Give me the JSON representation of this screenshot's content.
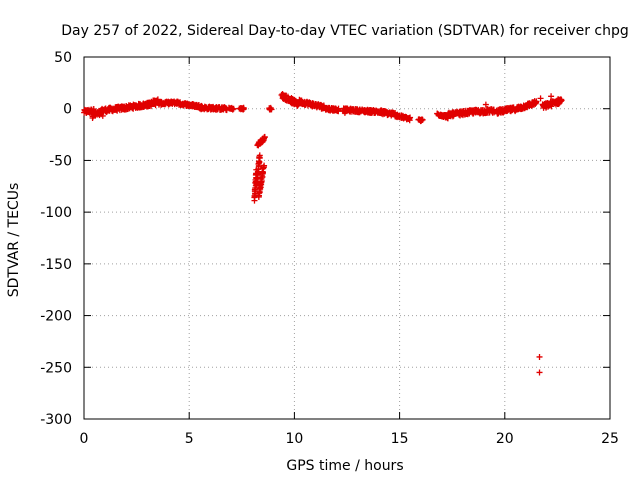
{
  "chart_data": {
    "type": "scatter",
    "title": "Day 257 of 2022, Sidereal Day-to-day VTEC variation (SDTVAR) for receiver chpg",
    "xlabel": "GPS time / hours",
    "ylabel": "SDTVAR / TECUs",
    "xlim": [
      0,
      25
    ],
    "ylim": [
      -300,
      50
    ],
    "x_ticks": [
      0,
      5,
      10,
      15,
      20,
      25
    ],
    "x_tick_labels": [
      "0",
      "5",
      "10",
      "15",
      "20",
      "25"
    ],
    "y_ticks": [
      50,
      0,
      -50,
      -100,
      -150,
      -200,
      -250,
      -300
    ],
    "y_tick_labels": [
      "50",
      "0",
      "-50",
      "-100",
      "-150",
      "-200",
      "-250",
      "-300"
    ],
    "grid": true,
    "marker": "+",
    "marker_color": "#e00000",
    "segments": [
      {
        "x0": 0.0,
        "x1": 0.5,
        "y0": -3,
        "y1": -2,
        "spread": 4
      },
      {
        "x0": 0.4,
        "x1": 0.9,
        "y0": -6,
        "y1": -4,
        "spread": 6
      },
      {
        "x0": 0.8,
        "x1": 2.0,
        "y0": -2,
        "y1": 1,
        "spread": 4
      },
      {
        "x0": 2.0,
        "x1": 3.4,
        "y0": 1,
        "y1": 5,
        "spread": 4
      },
      {
        "x0": 2.8,
        "x1": 3.5,
        "y0": 3,
        "y1": 8,
        "spread": 3
      },
      {
        "x0": 3.5,
        "x1": 4.5,
        "y0": 5,
        "y1": 6,
        "spread": 3
      },
      {
        "x0": 4.5,
        "x1": 5.6,
        "y0": 5,
        "y1": 2,
        "spread": 3
      },
      {
        "x0": 5.5,
        "x1": 6.8,
        "y0": 1,
        "y1": 0,
        "spread": 3
      },
      {
        "x0": 6.9,
        "x1": 7.1,
        "y0": 0,
        "y1": 0,
        "spread": 2
      },
      {
        "x0": 7.4,
        "x1": 7.6,
        "y0": 0,
        "y1": 0,
        "spread": 2
      },
      {
        "x0": 8.1,
        "x1": 8.2,
        "y0": -88,
        "y1": -60,
        "spread": 3
      },
      {
        "x0": 8.2,
        "x1": 8.35,
        "y0": -75,
        "y1": -45,
        "spread": 3
      },
      {
        "x0": 8.3,
        "x1": 8.55,
        "y0": -85,
        "y1": -55,
        "spread": 3
      },
      {
        "x0": 8.25,
        "x1": 8.6,
        "y0": -35,
        "y1": -28,
        "spread": 3
      },
      {
        "x0": 8.8,
        "x1": 8.9,
        "y0": 0,
        "y1": 0,
        "spread": 2
      },
      {
        "x0": 9.4,
        "x1": 10.2,
        "y0": 13,
        "y1": 4,
        "spread": 5
      },
      {
        "x0": 10.2,
        "x1": 11.5,
        "y0": 7,
        "y1": 1,
        "spread": 4
      },
      {
        "x0": 11.5,
        "x1": 12.1,
        "y0": 0,
        "y1": -1,
        "spread": 3
      },
      {
        "x0": 12.3,
        "x1": 14.0,
        "y0": -1,
        "y1": -3,
        "spread": 3
      },
      {
        "x0": 14.0,
        "x1": 14.9,
        "y0": -3,
        "y1": -6,
        "spread": 4
      },
      {
        "x0": 14.9,
        "x1": 15.5,
        "y0": -7,
        "y1": -10,
        "spread": 3
      },
      {
        "x0": 15.9,
        "x1": 16.1,
        "y0": -11,
        "y1": -11,
        "spread": 2
      },
      {
        "x0": 16.8,
        "x1": 17.3,
        "y0": -5,
        "y1": -8,
        "spread": 3
      },
      {
        "x0": 17.3,
        "x1": 18.5,
        "y0": -6,
        "y1": -3,
        "spread": 4
      },
      {
        "x0": 18.5,
        "x1": 19.5,
        "y0": -3,
        "y1": -2,
        "spread": 4
      },
      {
        "x0": 19.6,
        "x1": 20.6,
        "y0": -3,
        "y1": 0,
        "spread": 4
      },
      {
        "x0": 20.6,
        "x1": 21.5,
        "y0": 0,
        "y1": 6,
        "spread": 4
      },
      {
        "x0": 21.8,
        "x1": 22.7,
        "y0": 2,
        "y1": 8,
        "spread": 5
      }
    ],
    "outliers": [
      {
        "x": 21.65,
        "y": -240
      },
      {
        "x": 21.65,
        "y": -255
      },
      {
        "x": 21.7,
        "y": 10
      },
      {
        "x": 19.1,
        "y": 4
      },
      {
        "x": 22.2,
        "y": 12
      },
      {
        "x": 12.4,
        "y": -4
      },
      {
        "x": 16.0,
        "y": -12
      }
    ]
  }
}
